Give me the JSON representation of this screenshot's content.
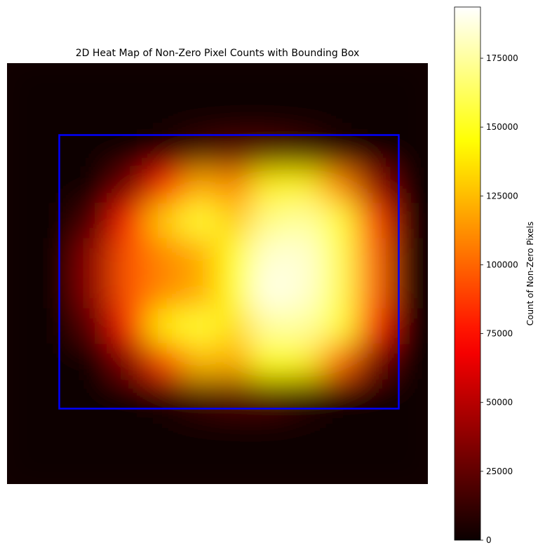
{
  "chart_data": {
    "type": "heatmap",
    "title": "2D Heat Map of Non-Zero Pixel Counts with Bounding Box",
    "colormap": "hot",
    "z": [
      [
        0,
        0,
        0,
        0,
        0,
        0,
        0,
        0,
        0,
        0,
        0,
        0
      ],
      [
        0,
        0,
        0,
        0,
        0,
        0,
        0,
        0,
        0,
        0,
        0,
        0
      ],
      [
        0,
        0,
        0,
        0,
        5000,
        15000,
        20000,
        20000,
        15000,
        5000,
        0,
        0
      ],
      [
        0,
        0,
        0,
        30000,
        80000,
        120000,
        110000,
        140000,
        140000,
        110000,
        40000,
        0
      ],
      [
        0,
        0,
        20000,
        80000,
        130000,
        155000,
        130000,
        170000,
        175000,
        155000,
        90000,
        0
      ],
      [
        0,
        0,
        40000,
        95000,
        110000,
        120000,
        150000,
        185000,
        185000,
        160000,
        100000,
        0
      ],
      [
        0,
        0,
        40000,
        95000,
        110000,
        120000,
        150000,
        190000,
        185000,
        160000,
        100000,
        0
      ],
      [
        0,
        0,
        25000,
        80000,
        140000,
        155000,
        135000,
        175000,
        175000,
        155000,
        80000,
        0
      ],
      [
        0,
        0,
        0,
        35000,
        90000,
        125000,
        120000,
        145000,
        140000,
        100000,
        30000,
        0
      ],
      [
        0,
        0,
        0,
        0,
        5000,
        15000,
        20000,
        20000,
        10000,
        0,
        0,
        0
      ],
      [
        0,
        0,
        0,
        0,
        0,
        0,
        0,
        0,
        0,
        0,
        0,
        0
      ],
      [
        0,
        0,
        0,
        0,
        0,
        0,
        0,
        0,
        0,
        0,
        0,
        0
      ]
    ],
    "colorbar_label": "Count of Non-Zero Pixels",
    "clim": [
      0,
      193600
    ],
    "cticks": [
      0,
      25000,
      50000,
      75000,
      100000,
      125000,
      150000,
      175000
    ]
  }
}
